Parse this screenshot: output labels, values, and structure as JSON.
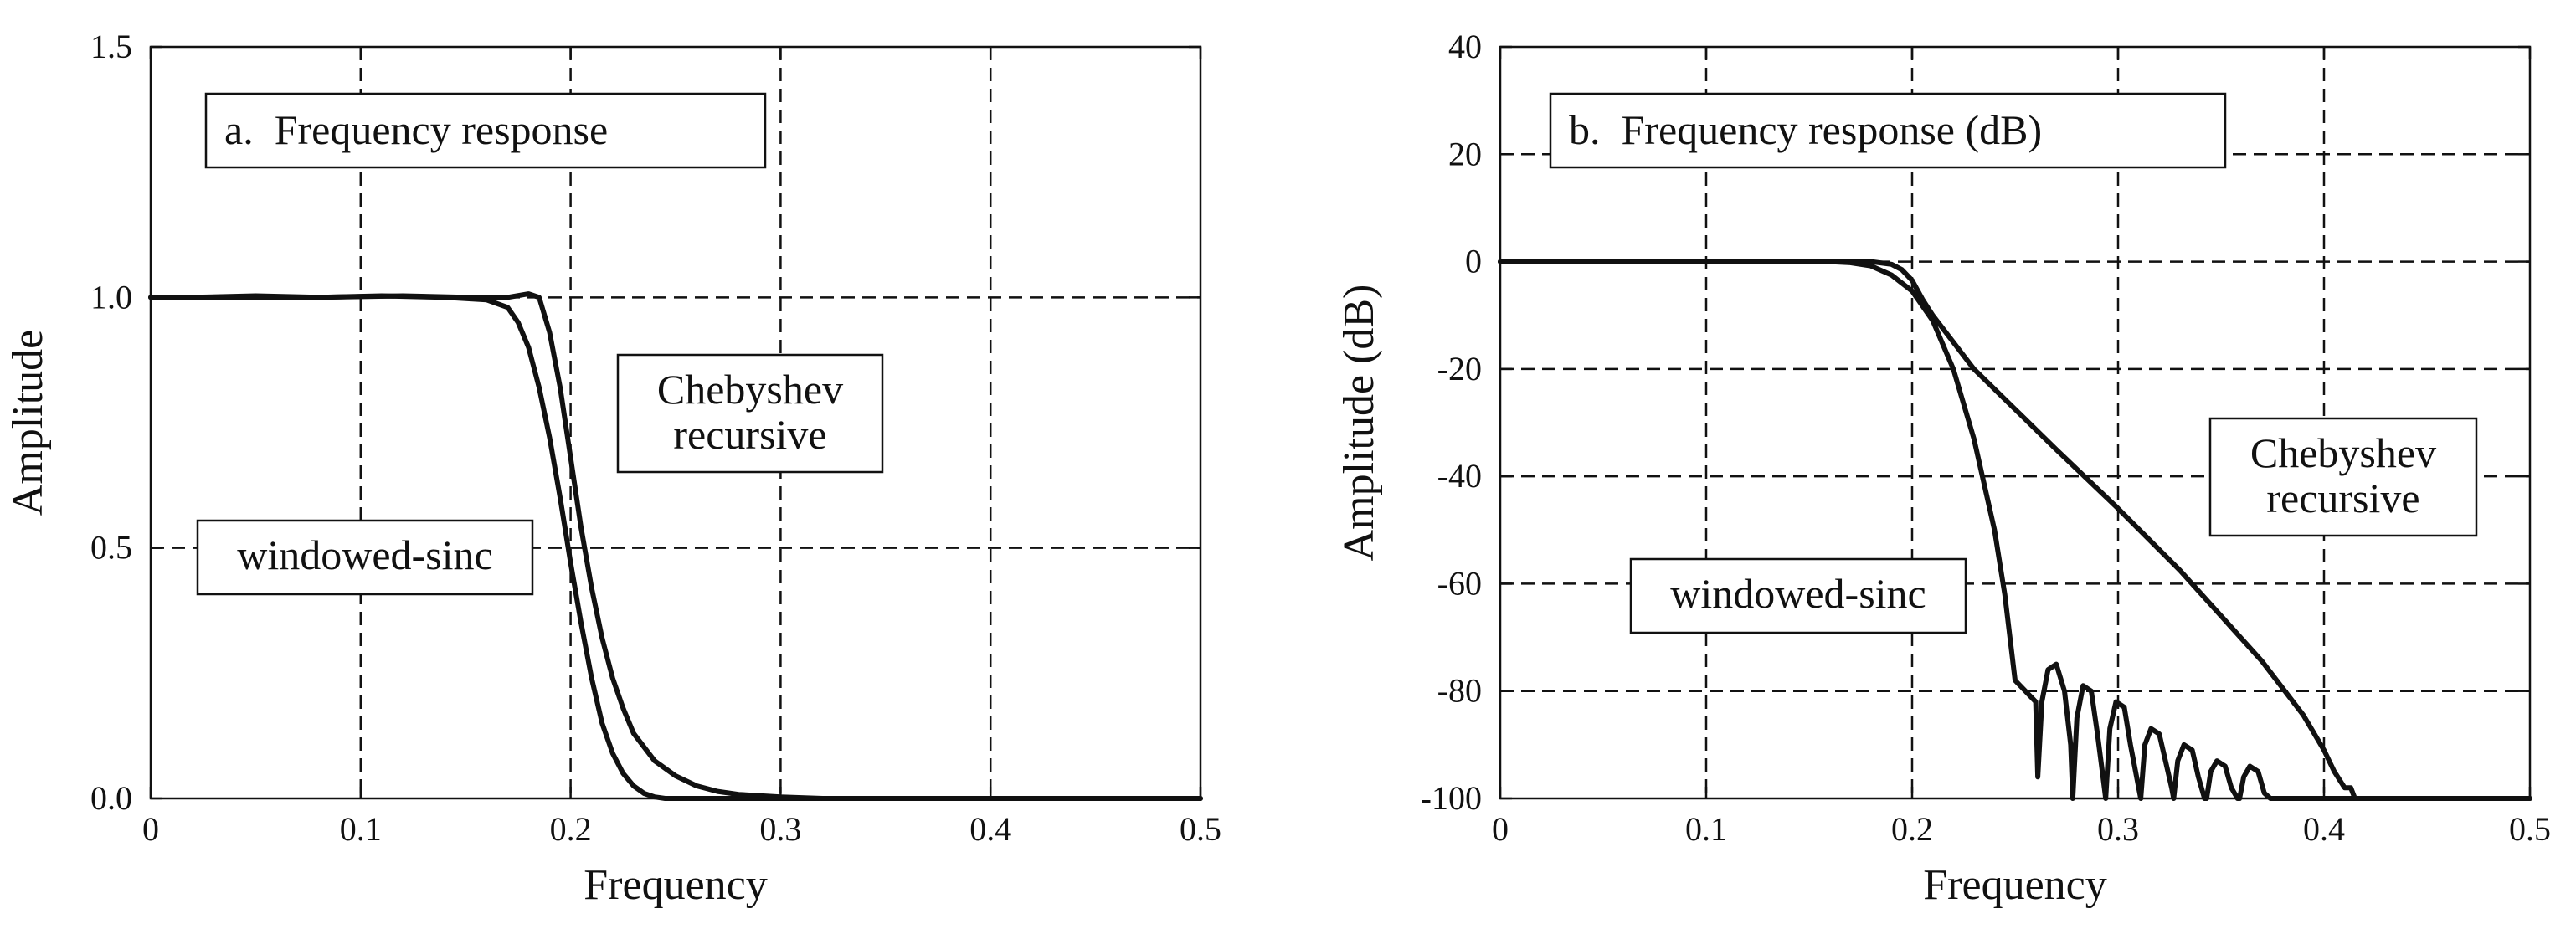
{
  "chart_data": [
    {
      "type": "line",
      "title": "a.  Frequency response",
      "xlabel": "Frequency",
      "ylabel": "Amplitude",
      "xlim": [
        0,
        0.5
      ],
      "ylim": [
        0,
        1.5
      ],
      "x_ticks": [
        "0",
        "0.1",
        "0.2",
        "0.3",
        "0.4",
        "0.5"
      ],
      "y_ticks": [
        "0.0",
        "0.5",
        "1.0",
        "1.5"
      ],
      "grid": true,
      "annotations": [
        {
          "text": [
            "windowed-sinc"
          ],
          "points_to": "windowed-sinc"
        },
        {
          "text": [
            "Chebyshev",
            "recursive"
          ],
          "points_to": "Chebyshev recursive"
        }
      ],
      "series": [
        {
          "id": "windowed-sinc",
          "x": [
            0,
            0.02,
            0.05,
            0.08,
            0.11,
            0.14,
            0.16,
            0.17,
            0.175,
            0.18,
            0.185,
            0.19,
            0.195,
            0.2,
            0.205,
            0.21,
            0.215,
            0.22,
            0.225,
            0.23,
            0.235,
            0.24,
            0.245,
            0.25,
            0.5
          ],
          "y": [
            1.0,
            1.0,
            1.003,
            1.0,
            1.003,
            1.0,
            0.995,
            0.98,
            0.95,
            0.9,
            0.82,
            0.72,
            0.6,
            0.47,
            0.35,
            0.24,
            0.15,
            0.09,
            0.05,
            0.025,
            0.01,
            0.003,
            0.0,
            0.0,
            0.0
          ]
        },
        {
          "id": "Chebyshev recursive",
          "x": [
            0,
            0.04,
            0.08,
            0.12,
            0.15,
            0.17,
            0.18,
            0.185,
            0.19,
            0.195,
            0.2,
            0.205,
            0.21,
            0.215,
            0.22,
            0.225,
            0.23,
            0.24,
            0.25,
            0.26,
            0.27,
            0.28,
            0.3,
            0.32,
            0.5
          ],
          "y": [
            1.0,
            1.0,
            1.0,
            1.003,
            1.0,
            1.0,
            1.007,
            1.0,
            0.93,
            0.82,
            0.68,
            0.54,
            0.42,
            0.32,
            0.24,
            0.18,
            0.13,
            0.075,
            0.045,
            0.025,
            0.014,
            0.008,
            0.003,
            0.0,
            0.0
          ]
        }
      ]
    },
    {
      "type": "line",
      "title": "b.  Frequency response (dB)",
      "xlabel": "Frequency",
      "ylabel": "Amplitude (dB)",
      "xlim": [
        0,
        0.5
      ],
      "ylim": [
        -100,
        40
      ],
      "x_ticks": [
        "0",
        "0.1",
        "0.2",
        "0.3",
        "0.4",
        "0.5"
      ],
      "y_ticks": [
        "-100",
        "-80",
        "-60",
        "-40",
        "-20",
        "0",
        "20",
        "40"
      ],
      "grid": true,
      "annotations": [
        {
          "text": [
            "windowed-sinc"
          ],
          "points_to": "windowed-sinc"
        },
        {
          "text": [
            "Chebyshev",
            "recursive"
          ],
          "points_to": "Chebyshev recursive"
        }
      ],
      "series": [
        {
          "id": "windowed-sinc",
          "x": [
            0,
            0.16,
            0.17,
            0.18,
            0.19,
            0.2,
            0.21,
            0.22,
            0.23,
            0.24,
            0.245,
            0.25,
            0.26,
            0.261,
            0.263,
            0.266,
            0.27,
            0.274,
            0.277,
            0.278,
            0.28,
            0.283,
            0.287,
            0.29,
            0.293,
            0.294,
            0.296,
            0.299,
            0.303,
            0.306,
            0.31,
            0.311,
            0.313,
            0.316,
            0.32,
            0.323,
            0.326,
            0.327,
            0.329,
            0.332,
            0.336,
            0.339,
            0.342,
            0.343,
            0.345,
            0.348,
            0.352,
            0.355,
            0.358,
            0.359,
            0.361,
            0.364,
            0.368,
            0.371,
            0.374,
            0.375,
            0.5
          ],
          "y": [
            0,
            0,
            -0.2,
            -0.8,
            -2.5,
            -5.5,
            -11,
            -20,
            -33,
            -50,
            -62,
            -78,
            -82,
            -96,
            -82,
            -76,
            -75,
            -80,
            -90,
            -100,
            -85,
            -79,
            -80,
            -88,
            -97,
            -100,
            -87,
            -82,
            -83,
            -90,
            -98,
            -100,
            -90,
            -87,
            -88,
            -93,
            -98,
            -100,
            -93,
            -90,
            -91,
            -96,
            -100,
            -100,
            -95,
            -93,
            -94,
            -98,
            -100,
            -100,
            -96,
            -94,
            -95,
            -99,
            -100,
            -100,
            -100
          ]
        },
        {
          "id": "Chebyshev recursive",
          "x": [
            0,
            0.16,
            0.18,
            0.19,
            0.195,
            0.2,
            0.205,
            0.21,
            0.22,
            0.23,
            0.25,
            0.27,
            0.3,
            0.33,
            0.35,
            0.37,
            0.39,
            0.4,
            0.405,
            0.41,
            0.413,
            0.415,
            0.5
          ],
          "y": [
            0,
            0,
            0,
            -0.5,
            -1.5,
            -3.5,
            -7,
            -10,
            -15,
            -20,
            -27.5,
            -35,
            -46,
            -57.5,
            -66,
            -74.5,
            -84.5,
            -91,
            -95,
            -98,
            -98,
            -100,
            -100
          ]
        }
      ]
    }
  ]
}
